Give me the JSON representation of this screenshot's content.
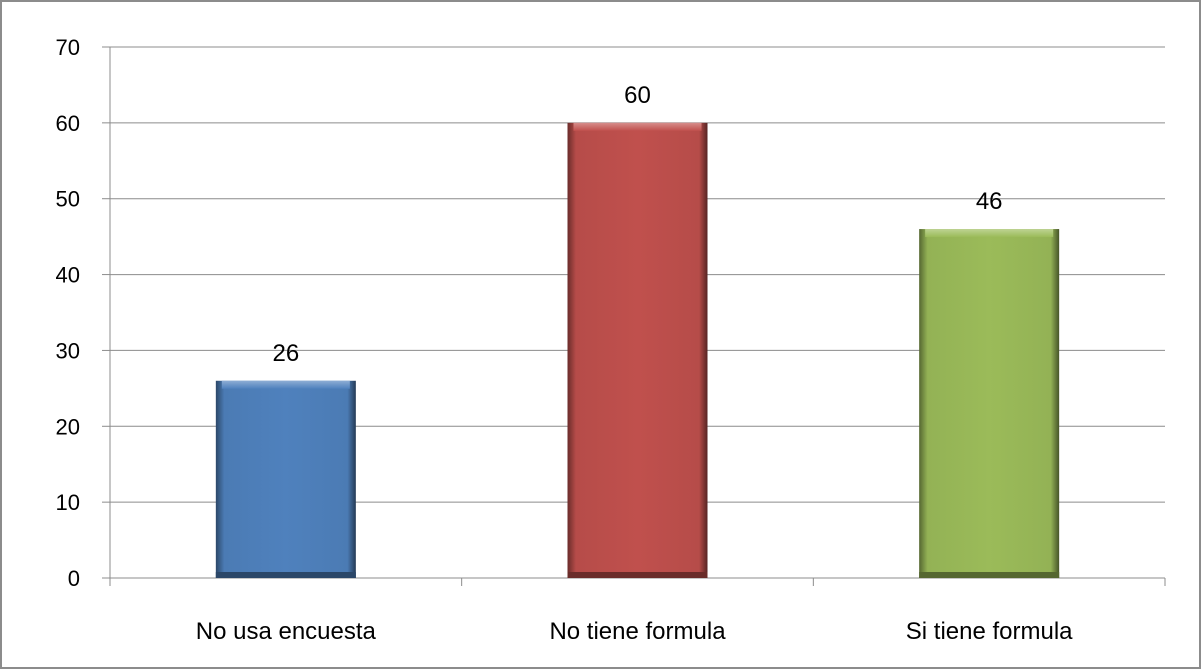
{
  "chart_data": {
    "type": "bar",
    "categories": [
      "No usa encuesta",
      "No tiene formula",
      "Si tiene formula"
    ],
    "values": [
      26,
      60,
      46
    ],
    "data_labels": [
      "26",
      "60",
      "46"
    ],
    "colors": [
      "#4f81bd",
      "#c0504d",
      "#9bbb59"
    ],
    "ylim": [
      0,
      70
    ],
    "yticks": [
      0,
      10,
      20,
      30,
      40,
      50,
      60,
      70
    ],
    "grid": true,
    "legend": "none"
  }
}
